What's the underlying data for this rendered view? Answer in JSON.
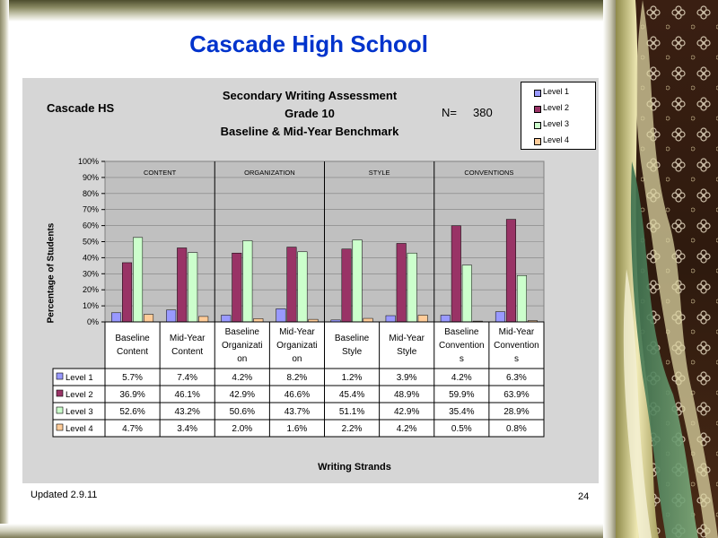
{
  "slide_title": "Cascade High School",
  "footer": {
    "updated": "Updated 2.9.11",
    "page_number": "24"
  },
  "chart_header": {
    "school": "Cascade HS",
    "title_lines": [
      "Secondary Writing Assessment",
      "Grade 10",
      "Baseline & Mid-Year Benchmark"
    ],
    "n_label": "N=",
    "n_value": "380"
  },
  "colors": {
    "title": "#0033cc",
    "panel_background": "#d6d6d6",
    "series": [
      "#9999ff",
      "#993366",
      "#ccffcc",
      "#ffcc99"
    ]
  },
  "chart_data": {
    "type": "bar",
    "ylabel": "Percentage of Students",
    "xlabel": "Writing Strands",
    "ylim": [
      0,
      100
    ],
    "y_ticks": [
      "0%",
      "10%",
      "20%",
      "30%",
      "40%",
      "50%",
      "60%",
      "70%",
      "80%",
      "90%",
      "100%"
    ],
    "grid": true,
    "legend_position": "top-right",
    "strand_groups": [
      "CONTENT",
      "ORGANIZATION",
      "STYLE",
      "CONVENTIONS"
    ],
    "categories": [
      "Baseline Content",
      "Mid-Year Content",
      "Baseline Organization",
      "Mid-Year Organization",
      "Baseline Style",
      "Mid-Year Style",
      "Baseline Conventions",
      "Mid-Year Conventions"
    ],
    "category_label_lines": [
      [
        "Baseline",
        "Content"
      ],
      [
        "Mid-Year",
        "Content"
      ],
      [
        "Baseline",
        "Organizati",
        "on"
      ],
      [
        "Mid-Year",
        "Organizati",
        "on"
      ],
      [
        "Baseline",
        "Style"
      ],
      [
        "Mid-Year",
        "Style"
      ],
      [
        "Baseline",
        "Convention",
        "s"
      ],
      [
        "Mid-Year",
        "Convention",
        "s"
      ]
    ],
    "series": [
      {
        "name": "Level 1",
        "values": [
          5.7,
          7.4,
          4.2,
          8.2,
          1.2,
          3.9,
          4.2,
          6.3
        ],
        "labels": [
          "5.7%",
          "7.4%",
          "4.2%",
          "8.2%",
          "1.2%",
          "3.9%",
          "4.2%",
          "6.3%"
        ]
      },
      {
        "name": "Level 2",
        "values": [
          36.9,
          46.1,
          42.9,
          46.6,
          45.4,
          48.9,
          59.9,
          63.9
        ],
        "labels": [
          "36.9%",
          "46.1%",
          "42.9%",
          "46.6%",
          "45.4%",
          "48.9%",
          "59.9%",
          "63.9%"
        ]
      },
      {
        "name": "Level 3",
        "values": [
          52.6,
          43.2,
          50.6,
          43.7,
          51.1,
          42.9,
          35.4,
          28.9
        ],
        "labels": [
          "52.6%",
          "43.2%",
          "50.6%",
          "43.7%",
          "51.1%",
          "42.9%",
          "35.4%",
          "28.9%"
        ]
      },
      {
        "name": "Level 4",
        "values": [
          4.7,
          3.4,
          2.0,
          1.6,
          2.2,
          4.2,
          0.5,
          0.8
        ],
        "labels": [
          "4.7%",
          "3.4%",
          "2.0%",
          "1.6%",
          "2.2%",
          "4.2%",
          "0.5%",
          "0.8%"
        ]
      }
    ]
  }
}
